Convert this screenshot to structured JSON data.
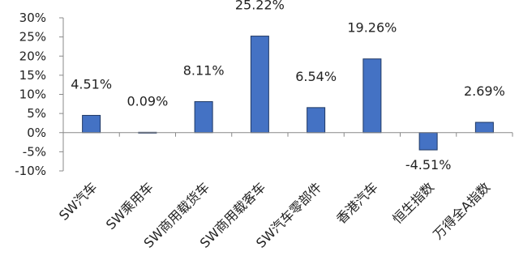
{
  "chart_data": {
    "type": "bar",
    "categories": [
      "SW汽车",
      "SW乘用车",
      "SW商用载货车",
      "SW商用载客车",
      "SW汽车零部件",
      "香港汽车",
      "恒生指数",
      "万得全A指数"
    ],
    "values": [
      4.51,
      0.09,
      8.11,
      25.22,
      6.54,
      19.26,
      -4.51,
      2.69
    ],
    "data_labels": [
      "4.51%",
      "0.09%",
      "8.11%",
      "25.22%",
      "6.54%",
      "19.26%",
      "-4.51%",
      "2.69%"
    ],
    "title": "",
    "xlabel": "",
    "ylabel": "",
    "ylim": [
      -10,
      30
    ],
    "yticks": [
      30,
      25,
      20,
      15,
      10,
      5,
      0,
      -5,
      -10
    ],
    "ytick_labels": [
      "30%",
      "25%",
      "20%",
      "15%",
      "10%",
      "5%",
      "0%",
      "-5%",
      "-10%"
    ],
    "grid": false,
    "legend": "none",
    "bar_color": "#4472C4",
    "bar_edge_color": "#1F3864"
  }
}
